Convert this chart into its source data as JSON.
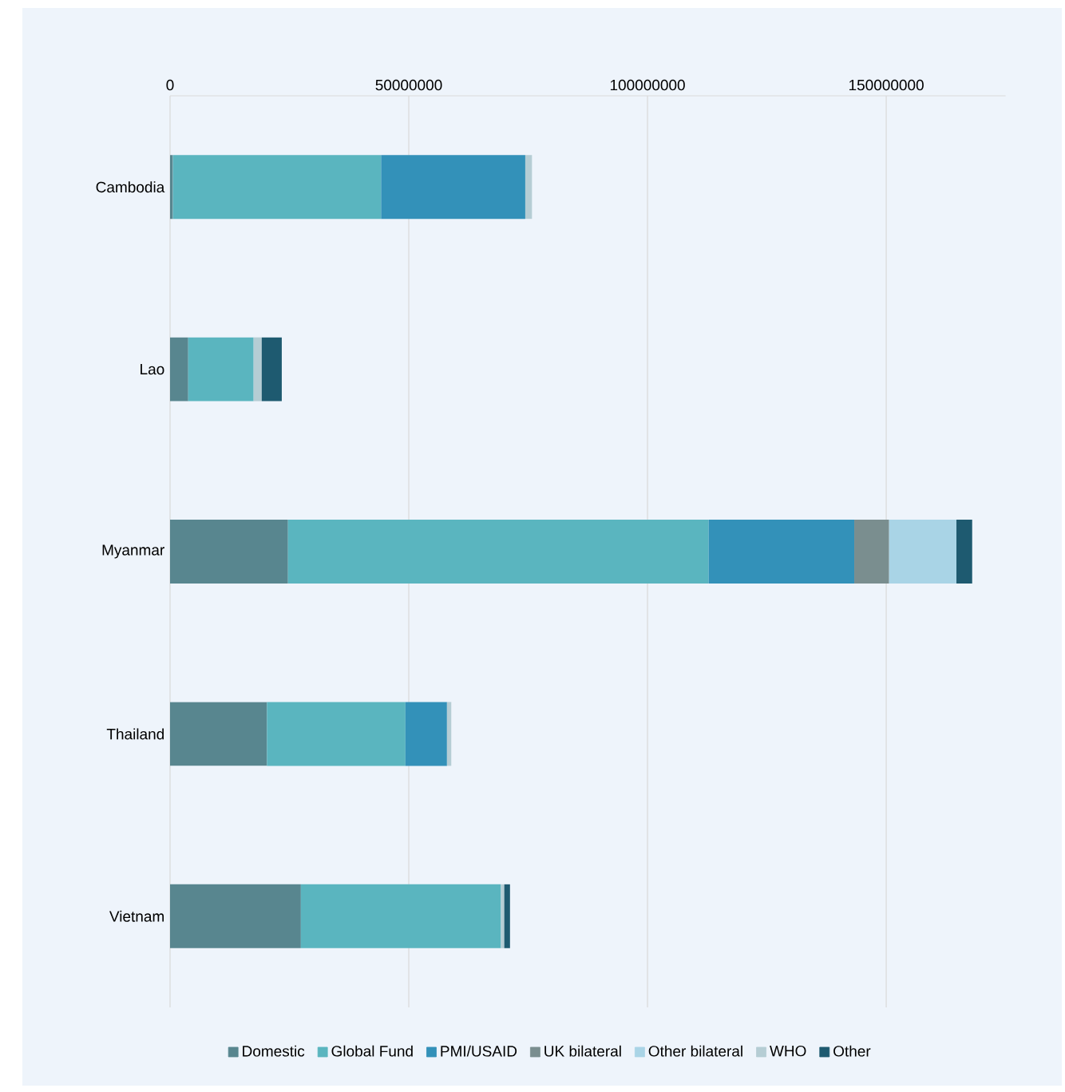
{
  "chart_data": {
    "type": "bar",
    "orientation": "horizontal",
    "stacked": true,
    "categories": [
      "Cambodia",
      "Lao",
      "Myanmar",
      "Thailand",
      "Vietnam"
    ],
    "series": [
      {
        "name": "Domestic",
        "color": "#58868f",
        "values": [
          600000,
          3800000,
          24700000,
          20300000,
          27400000
        ]
      },
      {
        "name": "Global Fund",
        "color": "#5ab5bf",
        "values": [
          43600000,
          13700000,
          88100000,
          29000000,
          41900000
        ]
      },
      {
        "name": "PMI/USAID",
        "color": "#3391b9",
        "values": [
          30200000,
          null,
          30500000,
          8700000,
          null
        ]
      },
      {
        "name": "UK bilateral",
        "color": "#7a8e8f",
        "values": [
          null,
          null,
          7300000,
          null,
          null
        ]
      },
      {
        "name": "Other bilateral",
        "color": "#a9d4e6",
        "values": [
          null,
          null,
          14100000,
          null,
          null
        ]
      },
      {
        "name": "WHO",
        "color": "#b5cdd4",
        "values": [
          1400000,
          1700000,
          null,
          900000,
          700000
        ]
      },
      {
        "name": "Other",
        "color": "#1e5a70",
        "values": [
          null,
          4200000,
          3300000,
          null,
          1200000
        ]
      }
    ],
    "xlim": [
      0,
      175000000
    ],
    "xticks": [
      0,
      50000000,
      100000000,
      150000000
    ],
    "grid": "x",
    "legend": "bottom"
  }
}
